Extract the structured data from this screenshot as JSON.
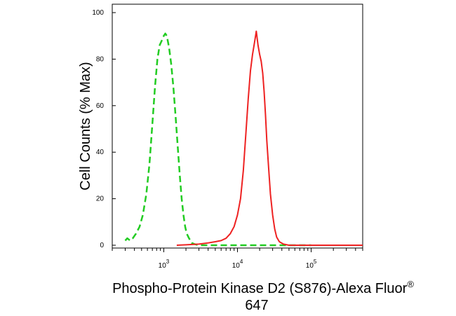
{
  "chart_data": {
    "type": "line",
    "ylabel": "Cell Counts (% Max)",
    "xlabel_line1": "Phospho-Protein Kinase D2 (S876)-Alexa Fluor",
    "xlabel_superscript": "®",
    "xlabel_line2": "647",
    "x_scale": "log",
    "xlim": [
      200,
      500000
    ],
    "ylim": [
      0,
      100
    ],
    "y_ticks": [
      {
        "value": 0,
        "label": "0"
      },
      {
        "value": 20,
        "label": "20"
      },
      {
        "value": 40,
        "label": "40"
      },
      {
        "value": 60,
        "label": "60"
      },
      {
        "value": 80,
        "label": "80"
      },
      {
        "value": 100,
        "label": "100"
      }
    ],
    "x_ticks": [
      {
        "value": 1000,
        "base": "10",
        "exp": "3"
      },
      {
        "value": 10000,
        "base": "10",
        "exp": "4"
      },
      {
        "value": 100000,
        "base": "10",
        "exp": "5"
      }
    ],
    "grid": false,
    "series": [
      {
        "color": "#22cc22",
        "dash": "dashed",
        "points": [
          [
            300,
            2
          ],
          [
            320,
            3
          ],
          [
            350,
            2
          ],
          [
            380,
            3
          ],
          [
            420,
            5
          ],
          [
            470,
            8
          ],
          [
            520,
            13
          ],
          [
            580,
            22
          ],
          [
            640,
            35
          ],
          [
            700,
            52
          ],
          [
            760,
            68
          ],
          [
            820,
            80
          ],
          [
            880,
            86
          ],
          [
            940,
            88
          ],
          [
            1000,
            90
          ],
          [
            1050,
            91
          ],
          [
            1100,
            90
          ],
          [
            1180,
            85
          ],
          [
            1260,
            78
          ],
          [
            1350,
            68
          ],
          [
            1450,
            55
          ],
          [
            1550,
            42
          ],
          [
            1650,
            30
          ],
          [
            1750,
            20
          ],
          [
            1850,
            13
          ],
          [
            1950,
            8
          ],
          [
            2050,
            5
          ],
          [
            2200,
            3
          ],
          [
            2400,
            1
          ],
          [
            2600,
            0.5
          ],
          [
            3000,
            0
          ],
          [
            10000,
            0
          ],
          [
            100000,
            0
          ]
        ]
      },
      {
        "color": "#ee2222",
        "dash": "solid",
        "points": [
          [
            1500,
            0
          ],
          [
            2000,
            0.2
          ],
          [
            3000,
            0.5
          ],
          [
            4000,
            1
          ],
          [
            5000,
            1.5
          ],
          [
            6000,
            2
          ],
          [
            7000,
            3
          ],
          [
            8000,
            5
          ],
          [
            9000,
            8
          ],
          [
            10000,
            13
          ],
          [
            11000,
            20
          ],
          [
            12000,
            32
          ],
          [
            13000,
            48
          ],
          [
            14000,
            63
          ],
          [
            15000,
            75
          ],
          [
            16000,
            82
          ],
          [
            17000,
            87
          ],
          [
            18000,
            92
          ],
          [
            19000,
            86
          ],
          [
            20000,
            82
          ],
          [
            21000,
            79
          ],
          [
            22000,
            74
          ],
          [
            23000,
            66
          ],
          [
            24000,
            56
          ],
          [
            25000,
            45
          ],
          [
            26500,
            33
          ],
          [
            28000,
            22
          ],
          [
            30000,
            13
          ],
          [
            32000,
            7
          ],
          [
            34000,
            3.5
          ],
          [
            37000,
            1.5
          ],
          [
            42000,
            0.5
          ],
          [
            50000,
            0
          ],
          [
            500000,
            0
          ]
        ]
      }
    ]
  }
}
